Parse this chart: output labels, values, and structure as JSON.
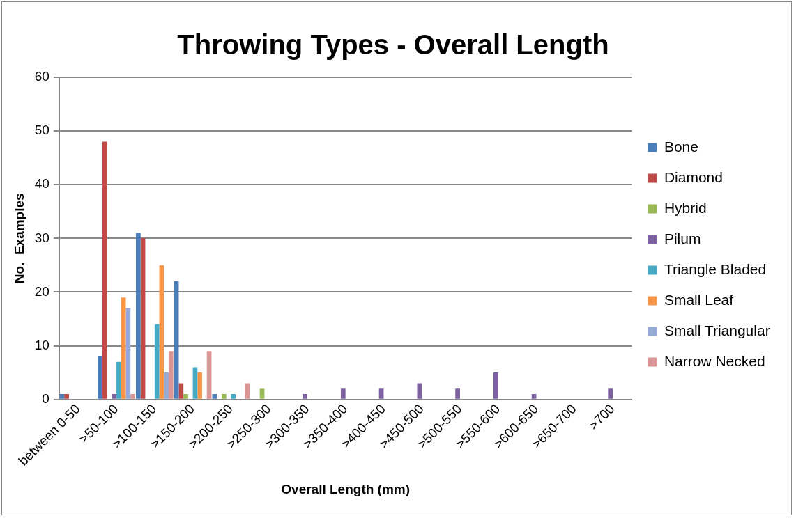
{
  "chart_data": {
    "type": "bar",
    "title": "Throwing Types - Overall Length",
    "xlabel": "Overall Length (mm)",
    "ylabel": "No.  Examples",
    "categories": [
      "between 0-50",
      ">50-100",
      ">100-150",
      ">150-200",
      ">200-250",
      ">250-300",
      ">300-350",
      ">350-400",
      ">400-450",
      ">450-500",
      ">500-550",
      ">550-600",
      ">600-650",
      ">650-700",
      ">700"
    ],
    "series": [
      {
        "name": "Bone",
        "color": "#4a7ebb",
        "values": [
          1,
          8,
          31,
          22,
          1,
          0,
          0,
          0,
          0,
          0,
          0,
          0,
          0,
          0,
          0
        ]
      },
      {
        "name": "Diamond",
        "color": "#be4b48",
        "values": [
          1,
          48,
          30,
          3,
          0,
          0,
          0,
          0,
          0,
          0,
          0,
          0,
          0,
          0,
          0
        ]
      },
      {
        "name": "Hybrid",
        "color": "#98b954",
        "values": [
          0,
          0,
          0,
          1,
          1,
          2,
          0,
          0,
          0,
          0,
          0,
          0,
          0,
          0,
          0
        ]
      },
      {
        "name": "Pilum",
        "color": "#7d60a0",
        "values": [
          0,
          1,
          0,
          0,
          0,
          0,
          1,
          2,
          2,
          3,
          2,
          5,
          1,
          0,
          2
        ]
      },
      {
        "name": "Triangle Bladed",
        "color": "#46aac5",
        "values": [
          0,
          7,
          14,
          6,
          1,
          0,
          0,
          0,
          0,
          0,
          0,
          0,
          0,
          0,
          0
        ]
      },
      {
        "name": "Small Leaf",
        "color": "#f79646",
        "values": [
          0,
          19,
          25,
          5,
          0,
          0,
          0,
          0,
          0,
          0,
          0,
          0,
          0,
          0,
          0
        ]
      },
      {
        "name": "Small Triangular",
        "color": "#95abd6",
        "values": [
          0,
          17,
          5,
          0,
          0,
          0,
          0,
          0,
          0,
          0,
          0,
          0,
          0,
          0,
          0
        ]
      },
      {
        "name": "Narrow Necked",
        "color": "#d99694",
        "values": [
          0,
          1,
          9,
          9,
          3,
          0,
          0,
          0,
          0,
          0,
          0,
          0,
          0,
          0,
          0
        ]
      }
    ],
    "ylim": [
      0,
      60
    ],
    "yticks": [
      0,
      10,
      20,
      30,
      40,
      50,
      60
    ],
    "grid": "y",
    "legend": "right"
  }
}
